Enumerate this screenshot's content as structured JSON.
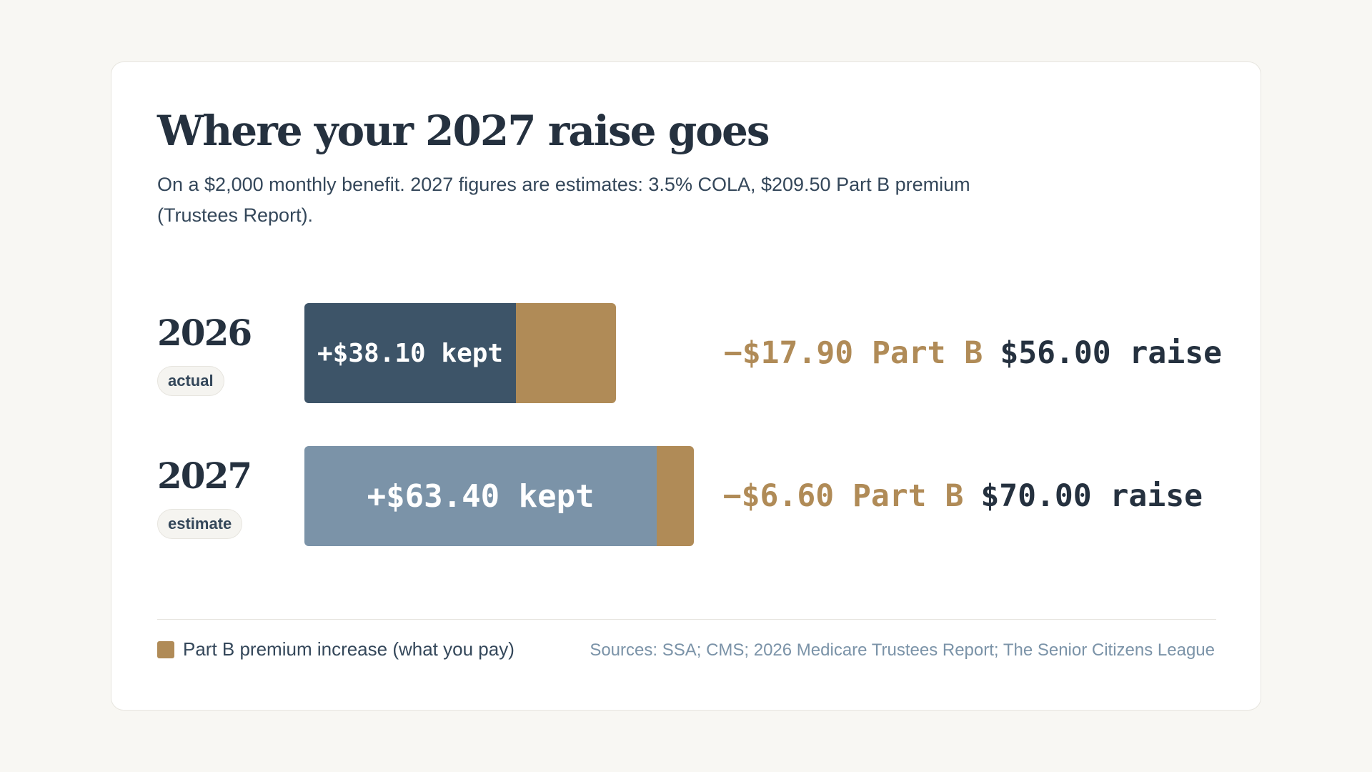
{
  "header": {
    "title": "Where your 2027 raise goes",
    "subtitle": "On a $2,000 monthly benefit. 2027 figures are estimates: 3.5% COLA, $209.50 Part B premium (Trustees Report)."
  },
  "chart_data": {
    "type": "bar",
    "orientation": "horizontal",
    "stacked": true,
    "categories": [
      "2026",
      "2027"
    ],
    "category_badges": [
      "actual",
      "estimate"
    ],
    "series": [
      {
        "name": "kept",
        "values": [
          38.1,
          63.4
        ]
      },
      {
        "name": "Part B premium increase (what you pay)",
        "values": [
          17.9,
          6.6
        ]
      }
    ],
    "totals": [
      56.0,
      70.0
    ],
    "kept_labels": [
      "+$38.10 kept",
      "+$63.40 kept"
    ],
    "partb_labels": [
      "−$17.90 Part B",
      "−$6.60 Part B"
    ],
    "raise_labels": [
      "$56.00 raise",
      "$70.00 raise"
    ],
    "legend": {
      "label": "Part B premium increase (what you pay)",
      "position": "bottom-left"
    },
    "grid": false
  },
  "footer": {
    "sources": "Sources: SSA; CMS; 2026 Medicare Trustees Report; The Senior Citizens League"
  },
  "colors": {
    "kept_2026": "#3d5468",
    "kept_2027": "#7b93a8",
    "part_b": "#b08b57",
    "text": "#25313f"
  }
}
